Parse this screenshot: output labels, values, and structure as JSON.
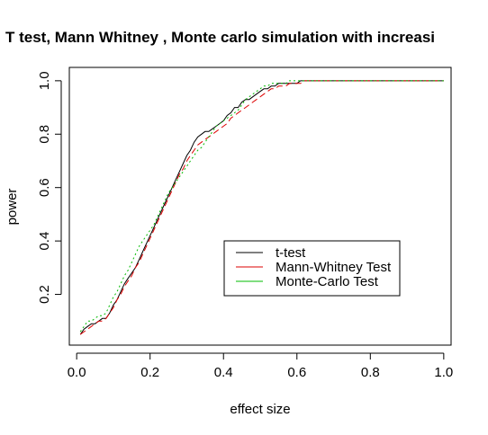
{
  "chart_data": {
    "type": "line",
    "title": "T test, Mann Whitney , Monte carlo simulation with increasi",
    "xlabel": "effect size",
    "ylabel": "power",
    "xlim": [
      -0.02,
      1.02
    ],
    "ylim": [
      0.01,
      1.05
    ],
    "x_ticks": [
      0.0,
      0.2,
      0.4,
      0.6,
      0.8,
      1.0
    ],
    "x_tick_labels": [
      "0.0",
      "0.2",
      "0.4",
      "0.6",
      "0.8",
      "1.0"
    ],
    "y_ticks": [
      0.2,
      0.4,
      0.6,
      0.8,
      1.0
    ],
    "y_tick_labels": [
      "0.2",
      "0.4",
      "0.6",
      "0.8",
      "1.0"
    ],
    "legend_position": "center-right",
    "series": [
      {
        "name": "t-test",
        "color": "#000000",
        "linestyle": "solid",
        "x": [
          0.01,
          0.02,
          0.03,
          0.04,
          0.05,
          0.06,
          0.07,
          0.08,
          0.09,
          0.1,
          0.11,
          0.12,
          0.13,
          0.14,
          0.15,
          0.16,
          0.17,
          0.18,
          0.19,
          0.2,
          0.21,
          0.22,
          0.23,
          0.24,
          0.25,
          0.26,
          0.27,
          0.28,
          0.29,
          0.3,
          0.31,
          0.32,
          0.33,
          0.34,
          0.35,
          0.36,
          0.37,
          0.38,
          0.39,
          0.4,
          0.41,
          0.42,
          0.43,
          0.44,
          0.45,
          0.46,
          0.47,
          0.48,
          0.49,
          0.5,
          0.51,
          0.52,
          0.53,
          0.54,
          0.55,
          0.56,
          0.57,
          0.58,
          0.59,
          0.6,
          0.61,
          0.62,
          0.7,
          0.8,
          0.9,
          1.0
        ],
        "values": [
          0.05,
          0.07,
          0.08,
          0.09,
          0.09,
          0.1,
          0.11,
          0.11,
          0.13,
          0.16,
          0.18,
          0.21,
          0.24,
          0.26,
          0.28,
          0.3,
          0.33,
          0.36,
          0.39,
          0.42,
          0.45,
          0.48,
          0.51,
          0.54,
          0.57,
          0.6,
          0.63,
          0.66,
          0.69,
          0.72,
          0.74,
          0.77,
          0.79,
          0.8,
          0.81,
          0.81,
          0.82,
          0.83,
          0.84,
          0.85,
          0.87,
          0.88,
          0.9,
          0.9,
          0.92,
          0.93,
          0.93,
          0.94,
          0.95,
          0.96,
          0.97,
          0.97,
          0.98,
          0.98,
          0.99,
          0.99,
          0.99,
          0.99,
          0.99,
          0.99,
          1.0,
          1.0,
          1.0,
          1.0,
          1.0,
          1.0
        ]
      },
      {
        "name": "Mann-Whitney Test",
        "color": "#dd0000",
        "linestyle": "dashed",
        "x": [
          0.01,
          0.02,
          0.03,
          0.04,
          0.05,
          0.06,
          0.07,
          0.08,
          0.09,
          0.1,
          0.11,
          0.12,
          0.13,
          0.14,
          0.15,
          0.16,
          0.17,
          0.18,
          0.19,
          0.2,
          0.21,
          0.22,
          0.23,
          0.24,
          0.25,
          0.26,
          0.27,
          0.28,
          0.29,
          0.3,
          0.31,
          0.32,
          0.33,
          0.34,
          0.35,
          0.36,
          0.37,
          0.38,
          0.39,
          0.4,
          0.41,
          0.42,
          0.43,
          0.44,
          0.45,
          0.46,
          0.47,
          0.48,
          0.49,
          0.5,
          0.51,
          0.52,
          0.53,
          0.54,
          0.55,
          0.56,
          0.57,
          0.58,
          0.59,
          0.6,
          0.61,
          0.62,
          0.7,
          0.8,
          0.9,
          1.0
        ],
        "values": [
          0.05,
          0.06,
          0.07,
          0.08,
          0.09,
          0.1,
          0.1,
          0.11,
          0.13,
          0.15,
          0.18,
          0.2,
          0.23,
          0.25,
          0.27,
          0.3,
          0.32,
          0.35,
          0.38,
          0.41,
          0.44,
          0.47,
          0.5,
          0.53,
          0.56,
          0.59,
          0.62,
          0.65,
          0.67,
          0.7,
          0.72,
          0.74,
          0.76,
          0.77,
          0.78,
          0.79,
          0.8,
          0.81,
          0.82,
          0.83,
          0.84,
          0.86,
          0.87,
          0.88,
          0.89,
          0.9,
          0.91,
          0.92,
          0.93,
          0.94,
          0.95,
          0.96,
          0.97,
          0.97,
          0.98,
          0.98,
          0.98,
          0.99,
          0.99,
          0.99,
          0.99,
          1.0,
          1.0,
          1.0,
          1.0,
          1.0
        ]
      },
      {
        "name": "Monte-Carlo Test",
        "color": "#00bb00",
        "linestyle": "dotted",
        "x": [
          0.01,
          0.02,
          0.03,
          0.04,
          0.05,
          0.06,
          0.07,
          0.08,
          0.09,
          0.1,
          0.11,
          0.12,
          0.13,
          0.14,
          0.15,
          0.16,
          0.17,
          0.18,
          0.19,
          0.2,
          0.21,
          0.22,
          0.23,
          0.24,
          0.25,
          0.26,
          0.27,
          0.28,
          0.29,
          0.3,
          0.31,
          0.32,
          0.33,
          0.34,
          0.35,
          0.36,
          0.37,
          0.38,
          0.39,
          0.4,
          0.41,
          0.42,
          0.43,
          0.44,
          0.45,
          0.46,
          0.47,
          0.48,
          0.49,
          0.5,
          0.51,
          0.52,
          0.53,
          0.54,
          0.55,
          0.56,
          0.57,
          0.58,
          0.59,
          0.6,
          0.61,
          0.62,
          0.7,
          0.8,
          0.9,
          1.0
        ],
        "values": [
          0.06,
          0.08,
          0.1,
          0.1,
          0.11,
          0.12,
          0.12,
          0.13,
          0.16,
          0.19,
          0.21,
          0.24,
          0.27,
          0.29,
          0.32,
          0.35,
          0.38,
          0.4,
          0.42,
          0.44,
          0.46,
          0.49,
          0.52,
          0.55,
          0.58,
          0.6,
          0.62,
          0.64,
          0.66,
          0.68,
          0.7,
          0.72,
          0.74,
          0.75,
          0.77,
          0.79,
          0.81,
          0.83,
          0.84,
          0.85,
          0.86,
          0.87,
          0.88,
          0.89,
          0.91,
          0.93,
          0.94,
          0.95,
          0.96,
          0.97,
          0.98,
          0.98,
          0.99,
          0.99,
          0.99,
          0.99,
          0.99,
          1.0,
          1.0,
          1.0,
          1.0,
          1.0,
          1.0,
          1.0,
          1.0,
          1.0
        ]
      }
    ]
  }
}
